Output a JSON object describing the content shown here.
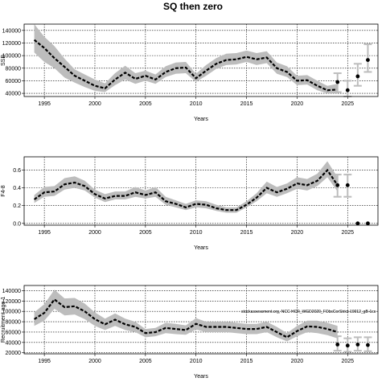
{
  "title": "SQ then zero",
  "chart_data": [
    {
      "type": "line",
      "id": "ssb",
      "xlabel": "Years",
      "ylabel": "SSB",
      "xlim": [
        1993,
        2028
      ],
      "ylim": [
        35000,
        150000
      ],
      "xticks": [
        1995,
        2000,
        2005,
        2010,
        2015,
        2020,
        2025
      ],
      "yticks": [
        40000,
        60000,
        80000,
        100000,
        120000,
        140000
      ],
      "grid": true,
      "series": [
        {
          "role": "estimate",
          "x": [
            1994,
            1995,
            1996,
            1997,
            1998,
            1999,
            2000,
            2001,
            2002,
            2003,
            2004,
            2005,
            2006,
            2007,
            2008,
            2009,
            2010,
            2011,
            2012,
            2013,
            2014,
            2015,
            2016,
            2017,
            2018,
            2019,
            2020,
            2021,
            2022,
            2023,
            2024
          ],
          "y": [
            125000,
            112000,
            96000,
            82000,
            68000,
            60000,
            52000,
            48000,
            62000,
            73000,
            63000,
            68000,
            62000,
            74000,
            80000,
            81000,
            64000,
            76000,
            87000,
            93000,
            94000,
            98000,
            94000,
            97000,
            80000,
            74000,
            60000,
            61000,
            52000,
            45000,
            46000
          ],
          "lower": [
            105000,
            90000,
            80000,
            65000,
            57000,
            50000,
            44000,
            42000,
            53000,
            62000,
            55000,
            60000,
            55000,
            66000,
            71000,
            72000,
            58000,
            68000,
            79000,
            85000,
            86000,
            90000,
            85000,
            88000,
            71000,
            66000,
            53000,
            54000,
            45000,
            40000,
            40000
          ],
          "upper": [
            150000,
            130000,
            115000,
            95000,
            78000,
            70000,
            62000,
            56000,
            72000,
            84000,
            72000,
            76000,
            70000,
            83000,
            89000,
            90000,
            71000,
            85000,
            96000,
            103000,
            104000,
            108000,
            104000,
            107000,
            89000,
            83000,
            68000,
            69000,
            60000,
            52000,
            55000
          ]
        },
        {
          "role": "projection",
          "x": [
            2024,
            2025,
            2026,
            2027
          ],
          "y": [
            58000,
            45000,
            67000,
            93000
          ],
          "lower": [
            42000,
            35000,
            52000,
            74000
          ],
          "upper": [
            72000,
            60000,
            87000,
            118000
          ]
        }
      ]
    },
    {
      "type": "line",
      "id": "fbar",
      "xlabel": "Years",
      "ylabel": "F4-8",
      "xlim": [
        1993,
        2028
      ],
      "ylim": [
        -0.02,
        0.75
      ],
      "xticks": [
        1995,
        2000,
        2005,
        2010,
        2015,
        2020,
        2025
      ],
      "yticks": [
        0.0,
        0.2,
        0.4,
        0.6
      ],
      "yticklabels": [
        "0.0",
        "0.2",
        "0.4",
        "0.6"
      ],
      "grid": true,
      "series": [
        {
          "role": "estimate",
          "x": [
            1994,
            1995,
            1996,
            1997,
            1998,
            1999,
            2000,
            2001,
            2002,
            2003,
            2004,
            2005,
            2006,
            2007,
            2008,
            2009,
            2010,
            2011,
            2012,
            2013,
            2014,
            2015,
            2016,
            2017,
            2018,
            2019,
            2020,
            2021,
            2022,
            2023,
            2024
          ],
          "y": [
            0.27,
            0.35,
            0.36,
            0.44,
            0.46,
            0.42,
            0.33,
            0.28,
            0.31,
            0.31,
            0.35,
            0.32,
            0.35,
            0.25,
            0.22,
            0.18,
            0.22,
            0.21,
            0.17,
            0.15,
            0.15,
            0.21,
            0.29,
            0.4,
            0.35,
            0.39,
            0.45,
            0.43,
            0.48,
            0.6,
            0.43
          ],
          "lower": [
            0.23,
            0.3,
            0.31,
            0.38,
            0.4,
            0.37,
            0.29,
            0.24,
            0.27,
            0.27,
            0.3,
            0.28,
            0.3,
            0.21,
            0.18,
            0.15,
            0.18,
            0.17,
            0.14,
            0.12,
            0.12,
            0.18,
            0.25,
            0.34,
            0.3,
            0.34,
            0.39,
            0.37,
            0.42,
            0.52,
            0.36
          ],
          "upper": [
            0.32,
            0.41,
            0.42,
            0.51,
            0.53,
            0.48,
            0.38,
            0.33,
            0.36,
            0.36,
            0.41,
            0.37,
            0.41,
            0.3,
            0.26,
            0.22,
            0.26,
            0.25,
            0.21,
            0.18,
            0.18,
            0.25,
            0.34,
            0.47,
            0.41,
            0.45,
            0.52,
            0.5,
            0.56,
            0.7,
            0.52
          ]
        },
        {
          "role": "projection",
          "x": [
            2024,
            2025,
            2026,
            2027
          ],
          "y": [
            0.43,
            0.43,
            0.0,
            0.0
          ],
          "lower": [
            0.3,
            0.3,
            0.0,
            0.0
          ],
          "upper": [
            0.55,
            0.55,
            0.0,
            0.0
          ]
        }
      ]
    },
    {
      "type": "line",
      "id": "recruitment",
      "xlabel": "Years",
      "ylabel": "Recruitment age 1",
      "xlim": [
        1993,
        2028
      ],
      "ylim": [
        18000,
        150000
      ],
      "xticks": [
        1995,
        2000,
        2005,
        2010,
        2015,
        2020,
        2025
      ],
      "yticks": [
        20000,
        40000,
        60000,
        80000,
        100000,
        120000,
        140000
      ],
      "grid": true,
      "annotation": "stockassessment.org, NCC HCR_WGD2020_FObsCorStrict-19012_gB-1cs",
      "series": [
        {
          "role": "estimate",
          "x": [
            1994,
            1995,
            1996,
            1997,
            1998,
            1999,
            2000,
            2001,
            2002,
            2003,
            2004,
            2005,
            2006,
            2007,
            2008,
            2009,
            2010,
            2011,
            2012,
            2013,
            2014,
            2015,
            2016,
            2017,
            2018,
            2019,
            2020,
            2021,
            2022,
            2023,
            2024
          ],
          "y": [
            85000,
            97000,
            123000,
            108000,
            110000,
            100000,
            85000,
            75000,
            84000,
            75000,
            70000,
            58000,
            60000,
            68000,
            66000,
            64000,
            76000,
            70000,
            70000,
            70000,
            68000,
            66000,
            66000,
            70000,
            60000,
            50000,
            62000,
            71000,
            70000,
            66000,
            60000
          ],
          "lower": [
            72000,
            82000,
            105000,
            92000,
            94000,
            85000,
            72000,
            64000,
            72000,
            64000,
            60000,
            50000,
            52000,
            58000,
            56000,
            55000,
            65000,
            60000,
            60000,
            60000,
            58000,
            56000,
            56000,
            60000,
            50000,
            42000,
            52000,
            60000,
            58000,
            54000,
            48000
          ],
          "upper": [
            98000,
            114000,
            142000,
            125000,
            126000,
            115000,
            98000,
            86000,
            96000,
            86000,
            80000,
            66000,
            68000,
            78000,
            76000,
            73000,
            87000,
            80000,
            80000,
            80000,
            78000,
            76000,
            76000,
            80000,
            70000,
            58000,
            72000,
            82000,
            82000,
            78000,
            72000
          ]
        },
        {
          "role": "projection",
          "x": [
            2024,
            2025,
            2026,
            2027
          ],
          "y": [
            36000,
            34000,
            36000,
            35000
          ],
          "lower": [
            24000,
            22000,
            24000,
            23000
          ],
          "upper": [
            52000,
            48000,
            50000,
            50000
          ]
        }
      ]
    }
  ],
  "colors": {
    "band": "#bdbdbd",
    "line": "#000000",
    "grid": "#000000",
    "projection_bar": "#bdbdbd"
  }
}
